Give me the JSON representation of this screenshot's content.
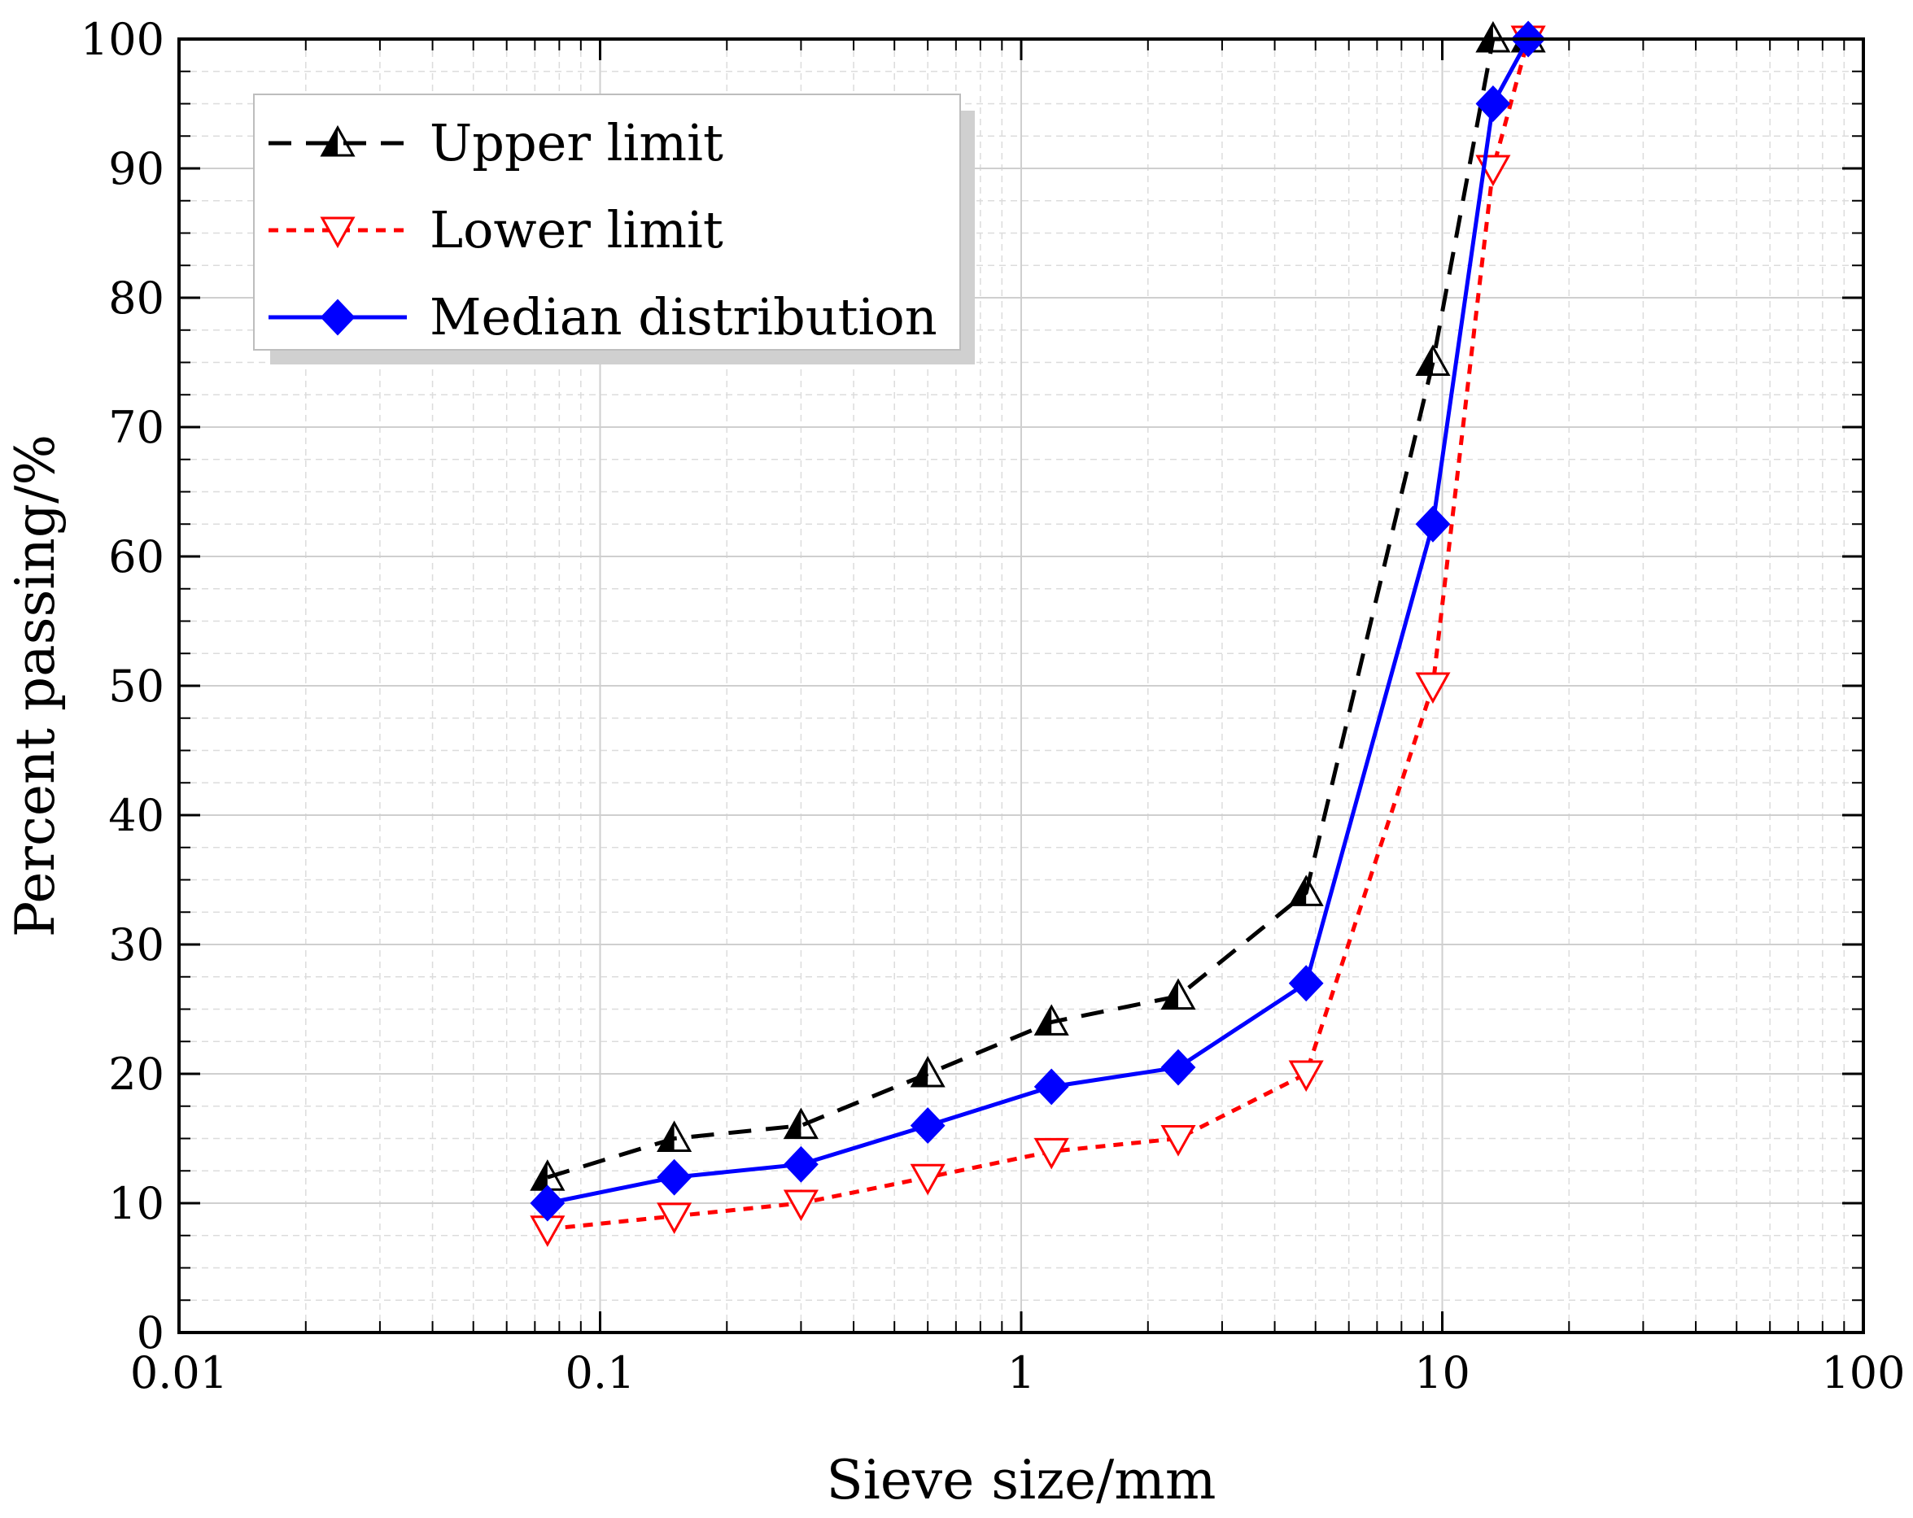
{
  "chart_data": {
    "type": "line",
    "title": "",
    "xlabel": "Sieve size/mm",
    "ylabel": "Percent passing/%",
    "xscale": "log",
    "xlim": [
      0.01,
      100
    ],
    "ylim": [
      0,
      100
    ],
    "grid": true,
    "legend_position": "top-left",
    "x_ticks": [
      0.01,
      0.1,
      1,
      10,
      100
    ],
    "x_tick_labels": [
      "0.01",
      "0.1",
      "1",
      "10",
      "100"
    ],
    "y_ticks": [
      0,
      10,
      20,
      30,
      40,
      50,
      60,
      70,
      80,
      90,
      100
    ],
    "y_tick_labels": [
      "0",
      "10",
      "20",
      "30",
      "40",
      "50",
      "60",
      "70",
      "80",
      "90",
      "100"
    ],
    "x": [
      0.075,
      0.15,
      0.3,
      0.6,
      1.18,
      2.36,
      4.75,
      9.5,
      13.2,
      16
    ],
    "series": [
      {
        "name": "Upper limit",
        "color": "#000000",
        "line_style": "dashed",
        "marker": "half-filled-triangle-up",
        "values": [
          12,
          15,
          16,
          20,
          24,
          26,
          34,
          75,
          100,
          100
        ]
      },
      {
        "name": "Lower limit",
        "color": "#ff0000",
        "line_style": "dotted",
        "marker": "open-triangle-down",
        "values": [
          8,
          9,
          10,
          12,
          14,
          15,
          20,
          50,
          90,
          100
        ]
      },
      {
        "name": "Median distribution",
        "color": "#0000ff",
        "line_style": "solid",
        "marker": "filled-diamond",
        "values": [
          10,
          12,
          13,
          16,
          19,
          20.5,
          27,
          62.5,
          95,
          100
        ]
      }
    ]
  }
}
